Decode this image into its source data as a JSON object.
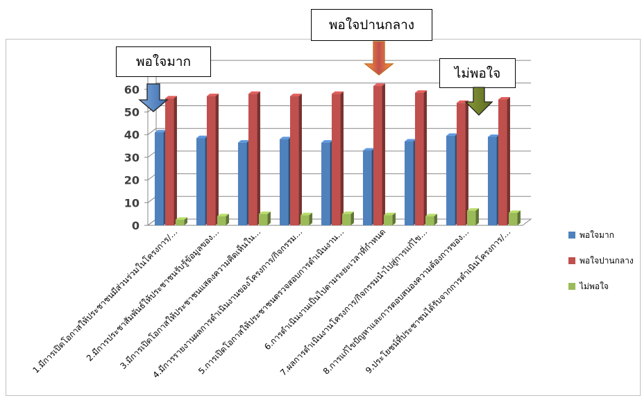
{
  "chart_data": {
    "type": "bar",
    "categories": [
      "1.มีการเปิดโอกาสให้ประชาชนมีส่วนร่วมในโครงการ/…",
      "2.มีการประชาสัมพันธ์ให้ประชาชนรับรู้ข้อมูลของ…",
      "3.มีการเปิดโอกาสให้ประชาชนแสดงความคิดเห็นใน…",
      "4.มีการรายงานผลการดำเนินงานของโครงการ/กิจกรรม…",
      "5.การเปิดโอกาสให้ประชาชนตรวจสอบการดำเนินงาน…",
      "6.การดำเนินงานเป็นไปตามระยะเวลาที่กำหนด",
      "7.ผลการดำเนินงานโครงการ/กิจกรรมนำไปสู่การแก้ไข…",
      "8.การแก้ไขปัญหาและการตอบสนองความต้องการของ…",
      "9.ประโยชน์ที่ประชาชนได้รับจากการดำเนินโครงการ/…"
    ],
    "series": [
      {
        "name": "พอใจมาก",
        "color": "#4f81bd",
        "values": [
          41,
          38.5,
          36.5,
          38,
          36.5,
          33,
          37,
          39.5,
          39
        ]
      },
      {
        "name": "พอใจปานกลาง",
        "color": "#c0504d",
        "values": [
          56,
          57,
          58,
          57,
          58,
          61.5,
          58.5,
          54,
          55.5
        ]
      },
      {
        "name": "ไม่พอใจ",
        "color": "#9bbb59",
        "values": [
          2.5,
          4,
          5,
          4.5,
          5,
          4.5,
          4,
          6.5,
          5.5
        ]
      }
    ],
    "yticks": [
      0,
      10,
      20,
      30,
      40,
      50,
      60
    ],
    "ylim": [
      0,
      70
    ],
    "grid": true,
    "legend_position": "right"
  },
  "callouts": {
    "very_satisfied": "พอใจมาก",
    "moderately_satisfied": "พอใจปานกลาง",
    "not_satisfied": "ไม่พอใจ"
  },
  "colors": {
    "arrow_blue": "#4f81bd",
    "arrow_orange": "#c0504d",
    "arrow_green": "#6b7d2a"
  }
}
